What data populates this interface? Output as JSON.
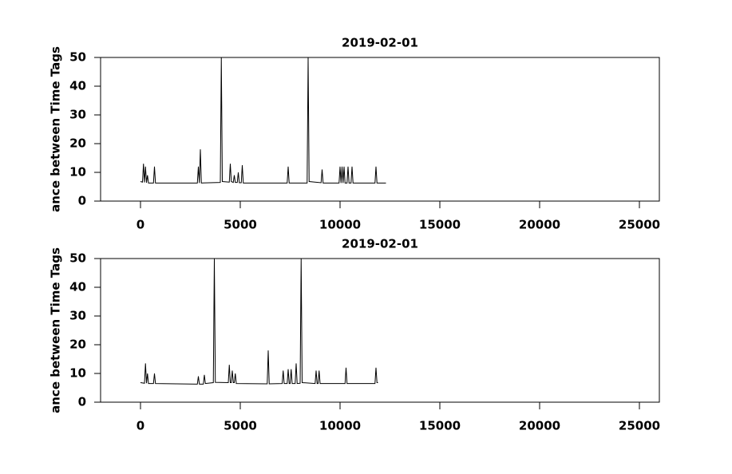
{
  "chart_data": [
    {
      "type": "line",
      "title": "2019-02-01",
      "y_label": "ance between Time Tags",
      "color": "#000000",
      "xlim": [
        -2000,
        26000
      ],
      "xticks": [
        0,
        5000,
        10000,
        15000,
        20000,
        25000
      ],
      "ylim": [
        0,
        50
      ],
      "yticks": [
        0,
        10,
        20,
        30,
        40,
        50
      ],
      "x": [
        0,
        100,
        150,
        200,
        250,
        300,
        350,
        400,
        650,
        700,
        750,
        2850,
        2900,
        2950,
        3000,
        3050,
        4000,
        4050,
        4100,
        4450,
        4500,
        4550,
        4650,
        4700,
        4750,
        4850,
        4900,
        4950,
        5050,
        5100,
        5150,
        7350,
        7400,
        7450,
        8350,
        8400,
        8450,
        9050,
        9100,
        9150,
        9950,
        10000,
        10050,
        10100,
        10150,
        10200,
        10250,
        10350,
        10400,
        10450,
        10550,
        10600,
        10650,
        11750,
        11800,
        11850,
        12300
      ],
      "values": [
        6.8,
        6.6,
        13,
        6.5,
        12,
        6.4,
        9,
        6.3,
        6.3,
        12,
        6.3,
        6.3,
        12,
        6.3,
        18,
        6.3,
        6.5,
        50,
        6.8,
        6.6,
        13,
        6.8,
        6.5,
        9,
        6.5,
        6.5,
        10,
        6.4,
        6.4,
        12.5,
        6.3,
        6.3,
        12,
        6.3,
        6.3,
        50,
        6.8,
        6.4,
        11,
        6.3,
        6.3,
        12,
        6.3,
        12,
        6.3,
        12,
        6.3,
        6.3,
        12,
        6.3,
        6.3,
        12,
        6.3,
        6.3,
        12,
        6.3,
        6.3
      ]
    },
    {
      "type": "line",
      "title": "2019-02-01",
      "y_label": "ance between Time Tags",
      "color": "#000000",
      "xlim": [
        -2000,
        26000
      ],
      "xticks": [
        0,
        5000,
        10000,
        15000,
        20000,
        25000
      ],
      "ylim": [
        0,
        50
      ],
      "yticks": [
        0,
        10,
        20,
        30,
        40,
        50
      ],
      "x": [
        0,
        200,
        250,
        300,
        350,
        400,
        650,
        700,
        750,
        2850,
        2900,
        2950,
        3150,
        3200,
        3250,
        3650,
        3700,
        3750,
        4400,
        4450,
        4500,
        4550,
        4600,
        4650,
        4700,
        4750,
        4800,
        6350,
        6400,
        6450,
        7100,
        7150,
        7200,
        7350,
        7400,
        7450,
        7500,
        7550,
        7600,
        7750,
        7800,
        7850,
        8000,
        8050,
        8100,
        8750,
        8800,
        8850,
        8900,
        8950,
        9000,
        10250,
        10300,
        10350,
        11750,
        11800,
        11850,
        11900
      ],
      "values": [
        6.8,
        6.6,
        13.5,
        6.6,
        10,
        6.5,
        6.5,
        10,
        6.5,
        6.3,
        9,
        6.3,
        6.3,
        9.5,
        6.5,
        6.8,
        50,
        6.9,
        6.8,
        13,
        6.8,
        6.8,
        11,
        6.8,
        6.8,
        10,
        6.5,
        6.4,
        18,
        6.4,
        6.5,
        11,
        6.5,
        6.5,
        11.5,
        6.5,
        6.5,
        11.5,
        6.5,
        6.5,
        13.5,
        6.5,
        6.6,
        50,
        6.8,
        6.5,
        11,
        6.5,
        6.5,
        11,
        6.5,
        6.5,
        12,
        6.5,
        6.5,
        12,
        6.8,
        6.8
      ]
    }
  ]
}
